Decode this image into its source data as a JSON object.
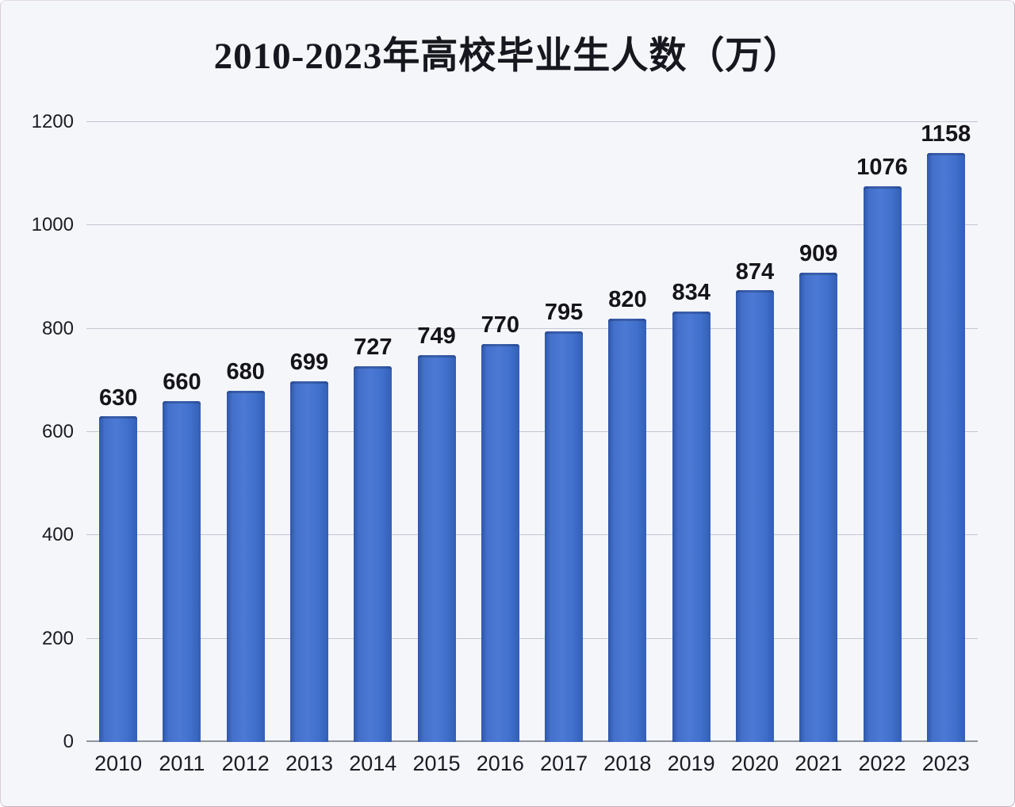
{
  "page": {
    "background_color": "#f5f6fa",
    "border_color": "#c9afc0"
  },
  "chart_data": {
    "type": "bar",
    "title": "2010-2023年高校毕业生人数（万）",
    "categories": [
      "2010",
      "2011",
      "2012",
      "2013",
      "2014",
      "2015",
      "2016",
      "2017",
      "2018",
      "2019",
      "2020",
      "2021",
      "2022",
      "2023"
    ],
    "values": [
      630,
      660,
      680,
      699,
      727,
      749,
      770,
      795,
      820,
      834,
      874,
      909,
      1076,
      1158
    ],
    "xlabel": "",
    "ylabel": "",
    "ylim": [
      0,
      1200
    ],
    "yticks": [
      0,
      200,
      400,
      600,
      800,
      1000,
      1200
    ],
    "grid": true,
    "legend": "none",
    "value_labels": true,
    "bar_color": "#3e6bc7",
    "gridline_color": "#c3c7d1",
    "text_color": "#17171f"
  }
}
